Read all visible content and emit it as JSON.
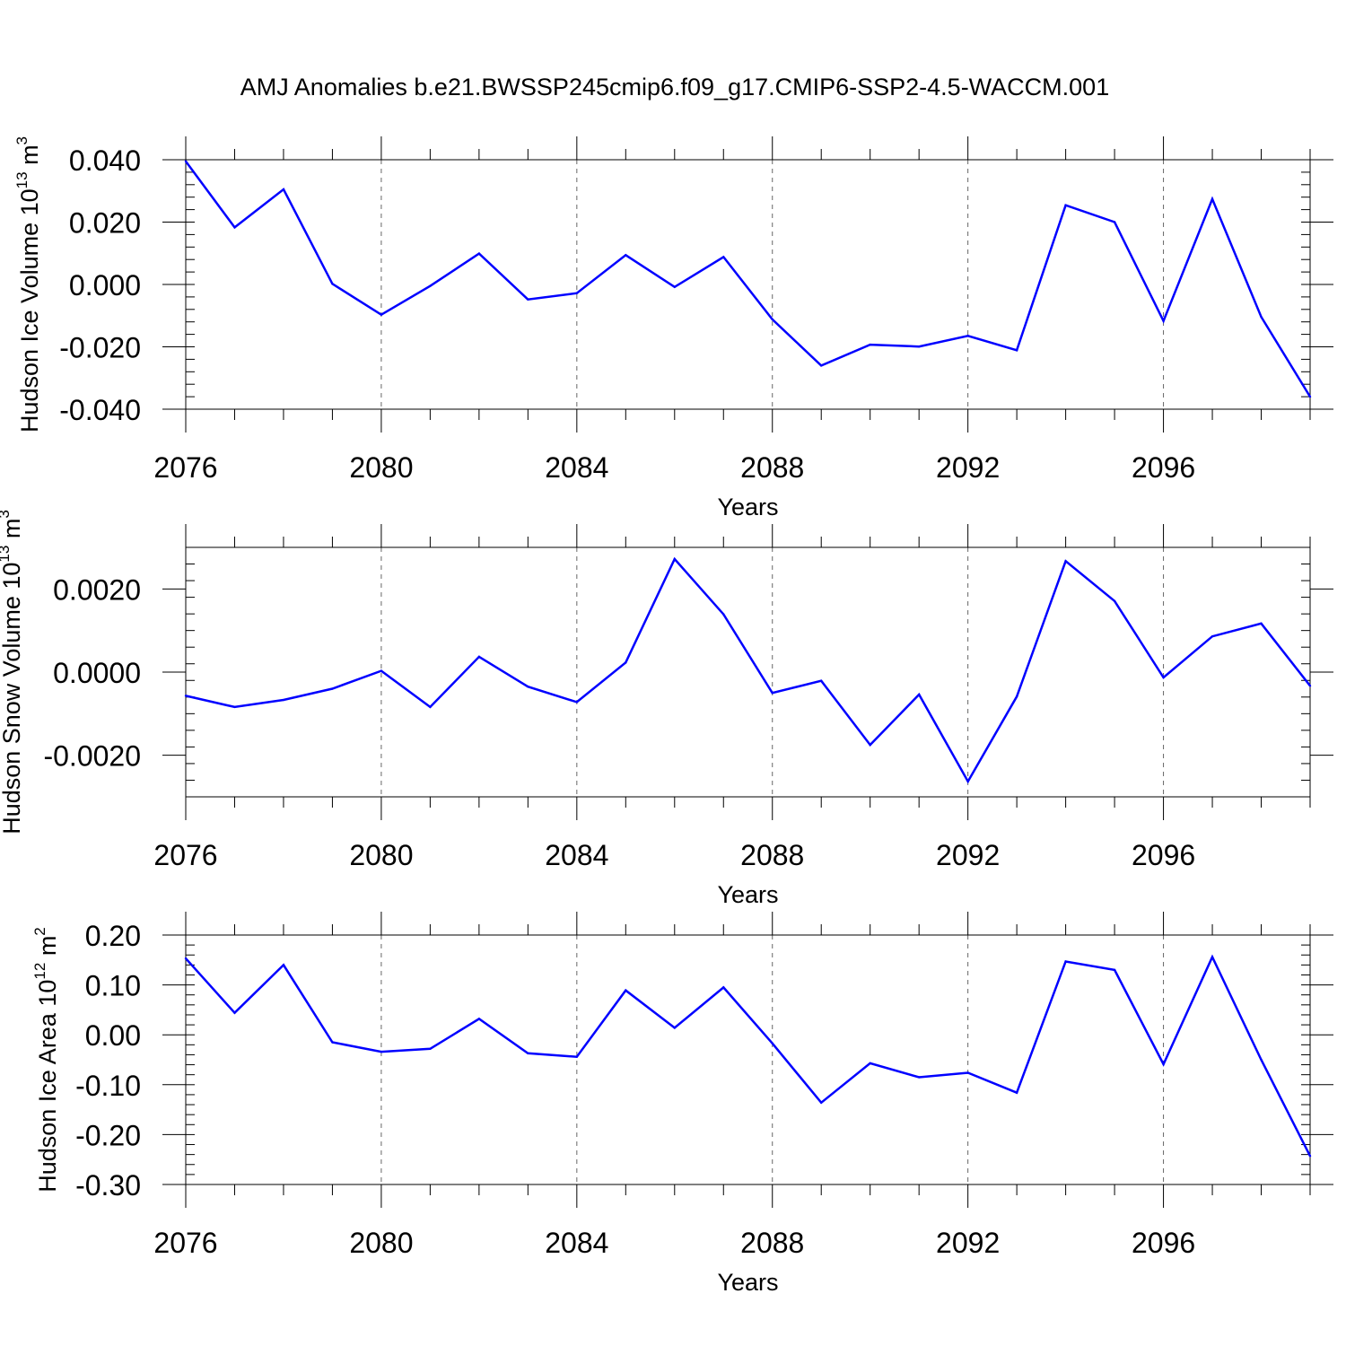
{
  "title": "AMJ Anomalies b.e21.BWSSP245cmip6.f09_g17.CMIP6-SSP2-4.5-WACCM.001",
  "colors": {
    "line": "#0000ff",
    "frame": "#000000",
    "grid": "#666666"
  },
  "chart_data": [
    {
      "type": "line",
      "ylabel": {
        "main": "Hudson Ice Volume 10",
        "exp": "13",
        "unit": " m",
        "unit_exp": "3"
      },
      "xlabel": "Years",
      "xlim": [
        2076,
        2099
      ],
      "ylim": [
        -0.04,
        0.04
      ],
      "yticks": [
        -0.04,
        -0.02,
        0.0,
        0.02,
        0.04
      ],
      "ytick_labels": [
        "-0.040",
        "-0.020",
        "0.000",
        "0.020",
        "0.040"
      ],
      "xticks": [
        2076,
        2080,
        2084,
        2088,
        2092,
        2096
      ],
      "xtick_labels": [
        "2076",
        "2080",
        "2084",
        "2088",
        "2092",
        "2096"
      ],
      "grid": "vertical-dashed",
      "x": [
        2076,
        2077,
        2078,
        2079,
        2080,
        2081,
        2082,
        2083,
        2084,
        2085,
        2086,
        2087,
        2088,
        2089,
        2090,
        2091,
        2092,
        2093,
        2094,
        2095,
        2096,
        2097,
        2098,
        2099
      ],
      "values": [
        0.0395,
        0.0183,
        0.0305,
        0.0002,
        -0.0097,
        -0.0005,
        0.0099,
        -0.0048,
        -0.0028,
        0.0094,
        -0.0008,
        0.0088,
        -0.0112,
        -0.026,
        -0.0193,
        -0.0199,
        -0.0165,
        -0.0211,
        0.0254,
        0.02,
        -0.0117,
        0.0274,
        -0.0104,
        -0.036
      ]
    },
    {
      "type": "line",
      "ylabel": {
        "main": "Hudson Snow Volume 10",
        "exp": "13",
        "unit": " m",
        "unit_exp": "3"
      },
      "xlabel": "Years",
      "xlim": [
        2076,
        2099
      ],
      "ylim": [
        -0.003,
        0.003
      ],
      "yticks": [
        -0.002,
        0.0,
        0.002
      ],
      "ytick_labels": [
        "-0.0020",
        "0.0000",
        "0.0020"
      ],
      "xticks": [
        2076,
        2080,
        2084,
        2088,
        2092,
        2096
      ],
      "xtick_labels": [
        "2076",
        "2080",
        "2084",
        "2088",
        "2092",
        "2096"
      ],
      "grid": "vertical-dashed",
      "x": [
        2076,
        2077,
        2078,
        2079,
        2080,
        2081,
        2082,
        2083,
        2084,
        2085,
        2086,
        2087,
        2088,
        2089,
        2090,
        2091,
        2092,
        2093,
        2094,
        2095,
        2096,
        2097,
        2098,
        2099
      ],
      "values": [
        -0.00057,
        -0.00084,
        -0.00067,
        -0.0004,
        3e-05,
        -0.00084,
        0.00037,
        -0.00035,
        -0.00072,
        0.00023,
        0.00272,
        0.00139,
        -0.0005,
        -0.00021,
        -0.00175,
        -0.00054,
        -0.00263,
        -0.00059,
        0.00267,
        0.00171,
        -0.00013,
        0.00086,
        0.00117,
        -0.00033
      ]
    },
    {
      "type": "line",
      "ylabel": {
        "main": "Hudson Ice Area 10",
        "exp": "12",
        "unit": " m",
        "unit_exp": "2"
      },
      "xlabel": "Years",
      "xlim": [
        2076,
        2099
      ],
      "ylim": [
        -0.3,
        0.2
      ],
      "yticks": [
        -0.3,
        -0.2,
        -0.1,
        0.0,
        0.1,
        0.2
      ],
      "ytick_labels": [
        "-0.30",
        "-0.20",
        "-0.10",
        "0.00",
        "0.10",
        "0.20"
      ],
      "xticks": [
        2076,
        2080,
        2084,
        2088,
        2092,
        2096
      ],
      "xtick_labels": [
        "2076",
        "2080",
        "2084",
        "2088",
        "2092",
        "2096"
      ],
      "grid": "vertical-dashed",
      "x": [
        2076,
        2077,
        2078,
        2079,
        2080,
        2081,
        2082,
        2083,
        2084,
        2085,
        2086,
        2087,
        2088,
        2089,
        2090,
        2091,
        2092,
        2093,
        2094,
        2095,
        2096,
        2097,
        2098,
        2099
      ],
      "values": [
        0.153,
        0.044,
        0.14,
        -0.015,
        -0.034,
        -0.028,
        0.032,
        -0.037,
        -0.044,
        0.089,
        0.014,
        0.095,
        -0.017,
        -0.136,
        -0.057,
        -0.085,
        -0.076,
        -0.116,
        0.147,
        0.13,
        -0.059,
        0.156,
        -0.05,
        -0.243
      ]
    }
  ]
}
